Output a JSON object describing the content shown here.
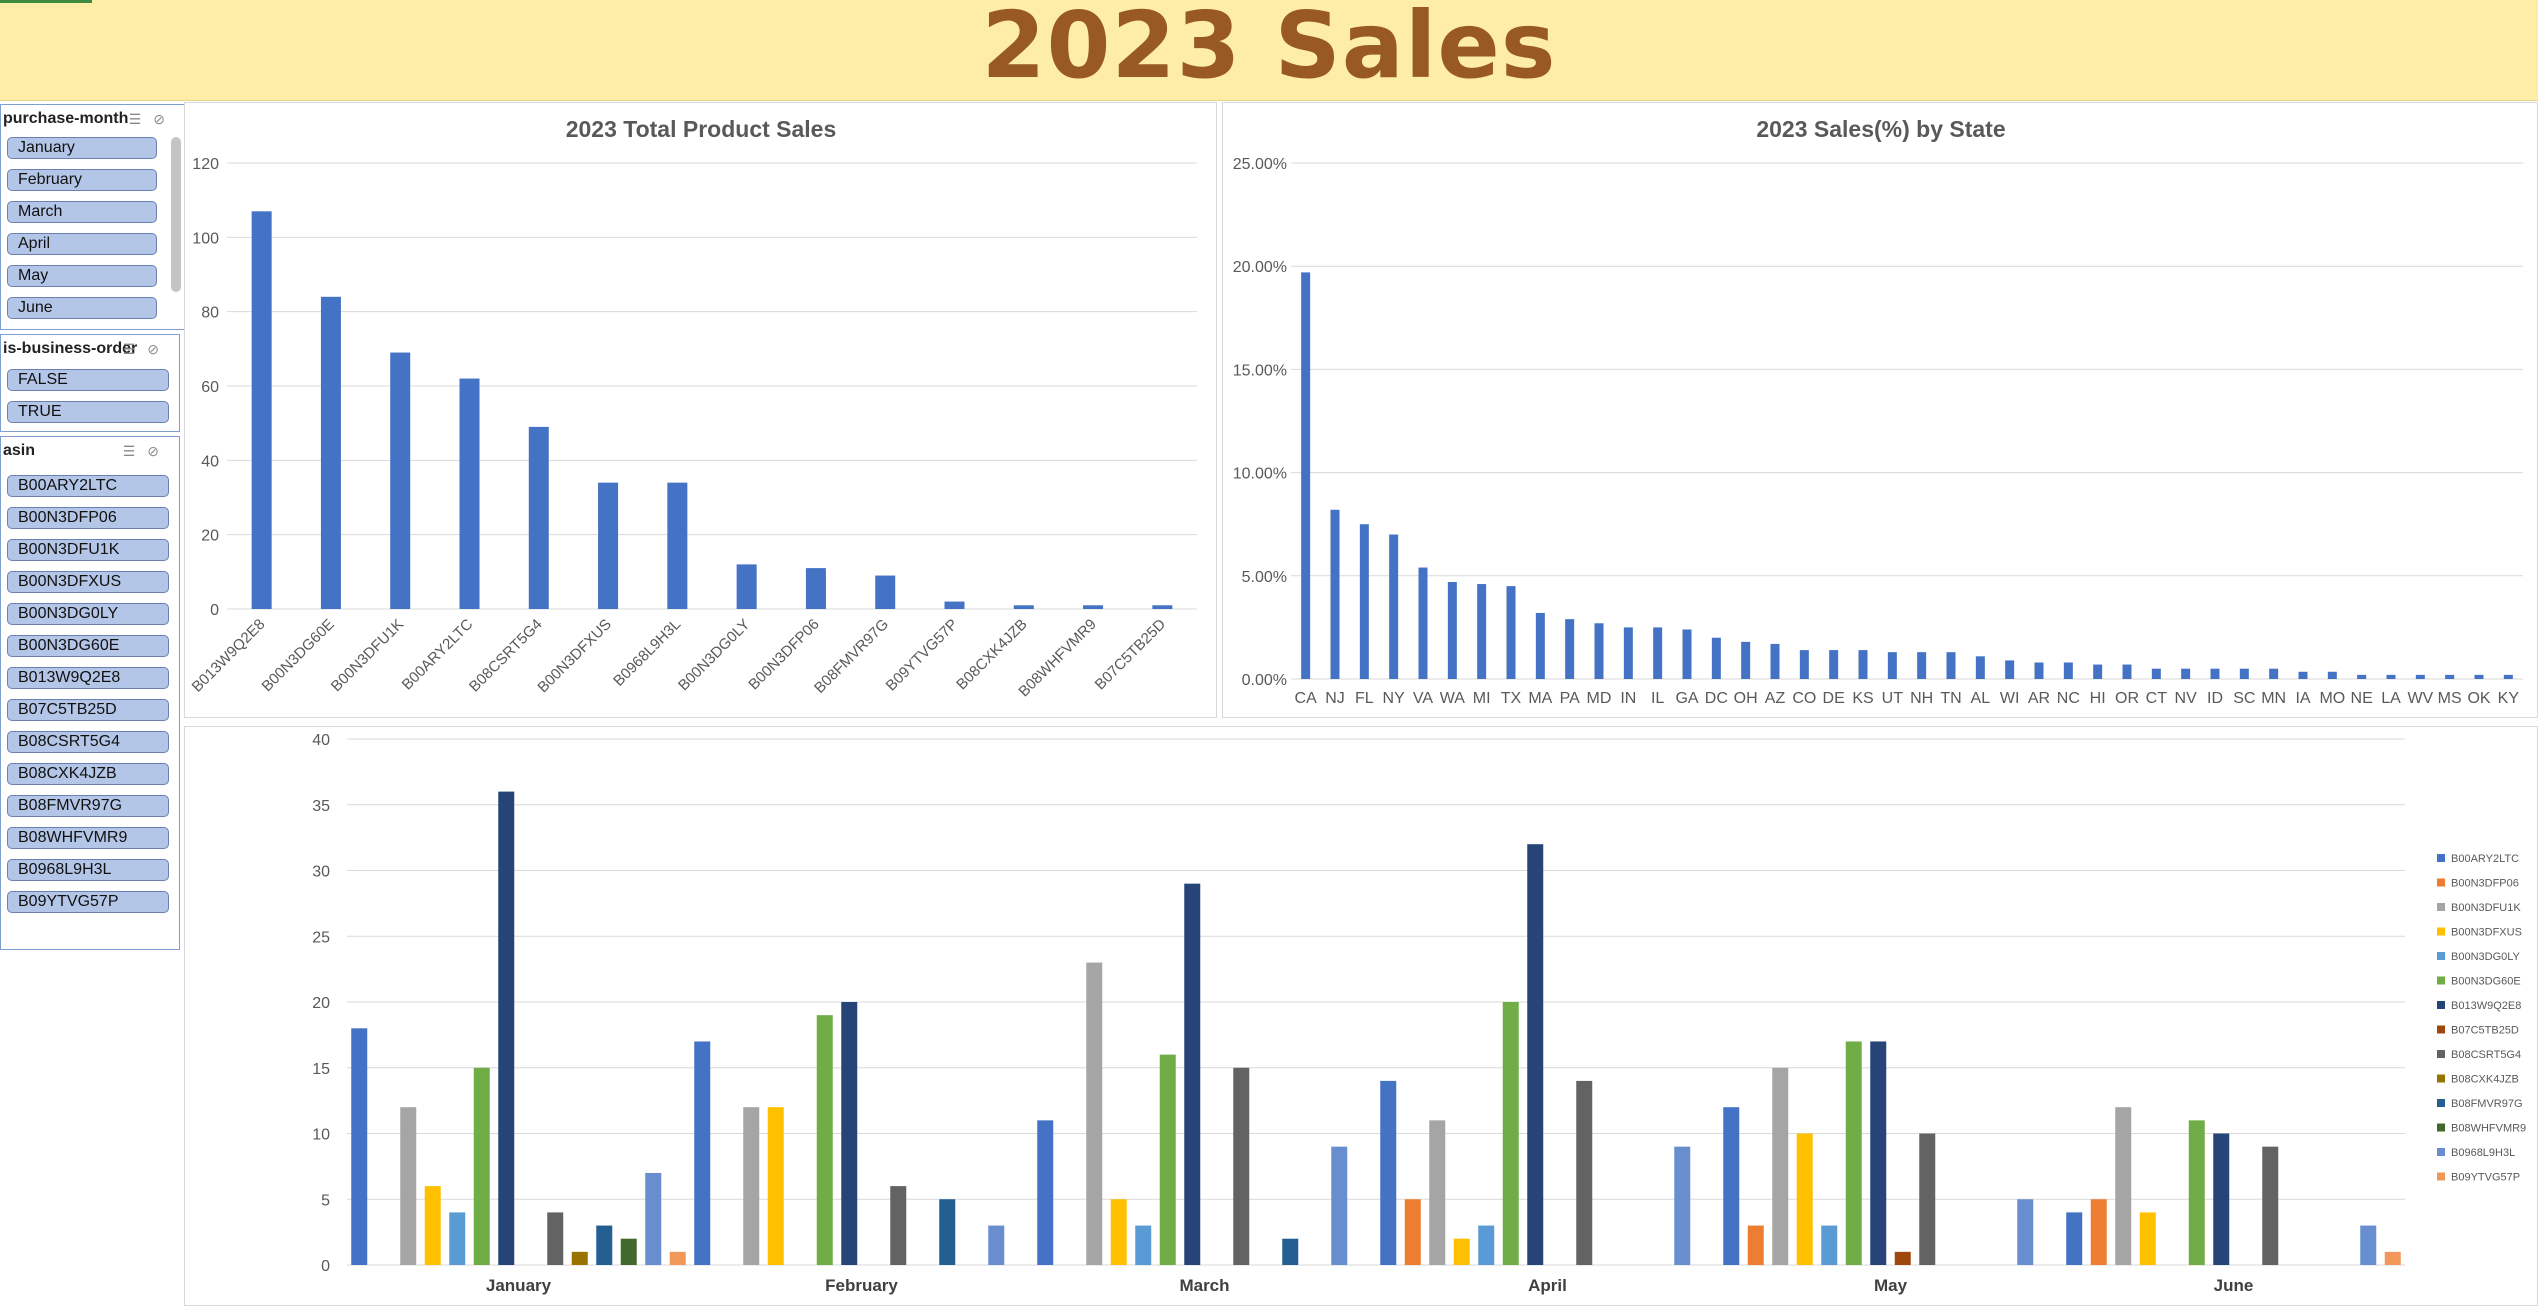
{
  "banner": {
    "title": "2023 Sales"
  },
  "slicers": {
    "month": {
      "title": "purchase-month",
      "items": [
        "January",
        "February",
        "March",
        "April",
        "May",
        "June"
      ]
    },
    "business": {
      "title": "is-business-order",
      "items": [
        "FALSE",
        "TRUE"
      ]
    },
    "asin": {
      "title": "asin",
      "items": [
        "B00ARY2LTC",
        "B00N3DFP06",
        "B00N3DFU1K",
        "B00N3DFXUS",
        "B00N3DG0LY",
        "B00N3DG60E",
        "B013W9Q2E8",
        "B07C5TB25D",
        "B08CSRT5G4",
        "B08CXK4JZB",
        "B08FMVR97G",
        "B08WHFVMR9",
        "B0968L9H3L",
        "B09YTVG57P"
      ]
    }
  },
  "colors": {
    "primary_bar": "#4472C4",
    "banner_bg": "#FDEDA6",
    "banner_text": "#985A22",
    "slicer_item": "#B4C6E7"
  },
  "chart_data": [
    {
      "type": "bar",
      "title": "2023 Total Product Sales",
      "categories": [
        "B013W9Q2E8",
        "B00N3DG60E",
        "B00N3DFU1K",
        "B00ARY2LTC",
        "B08CSRT5G4",
        "B00N3DFXUS",
        "B0968L9H3L",
        "B00N3DG0LY",
        "B00N3DFP06",
        "B08FMVR97G",
        "B09YTVG57P",
        "B08CXK4JZB",
        "B08WHFVMR9",
        "B07C5TB25D"
      ],
      "values": [
        107,
        84,
        69,
        62,
        49,
        34,
        34,
        12,
        11,
        9,
        2,
        1,
        1,
        1
      ],
      "ylim": [
        0,
        120
      ],
      "yticks": [
        "0",
        "20",
        "40",
        "60",
        "80",
        "100",
        "120"
      ],
      "grid": true
    },
    {
      "type": "bar",
      "title": "2023 Sales(%) by State",
      "categories": [
        "CA",
        "NJ",
        "FL",
        "NY",
        "VA",
        "WA",
        "MI",
        "TX",
        "MA",
        "PA",
        "MD",
        "IN",
        "IL",
        "GA",
        "DC",
        "OH",
        "AZ",
        "CO",
        "DE",
        "KS",
        "UT",
        "NH",
        "TN",
        "AL",
        "WI",
        "AR",
        "NC",
        "HI",
        "OR",
        "CT",
        "NV",
        "ID",
        "SC",
        "MN",
        "IA",
        "MO",
        "NE",
        "LA",
        "WV",
        "MS",
        "OK",
        "KY"
      ],
      "values": [
        19.7,
        8.2,
        7.5,
        7.0,
        5.4,
        4.7,
        4.6,
        4.5,
        3.2,
        2.9,
        2.7,
        2.5,
        2.5,
        2.4,
        2.0,
        1.8,
        1.7,
        1.4,
        1.4,
        1.4,
        1.3,
        1.3,
        1.3,
        1.1,
        0.9,
        0.8,
        0.8,
        0.7,
        0.7,
        0.5,
        0.5,
        0.5,
        0.5,
        0.5,
        0.35,
        0.35,
        0.2,
        0.2,
        0.2,
        0.2,
        0.2,
        0.2
      ],
      "ylim": [
        0,
        25
      ],
      "yticks": [
        "0.00%",
        "5.00%",
        "10.00%",
        "15.00%",
        "20.00%",
        "25.00%"
      ],
      "grid": true
    },
    {
      "type": "bar",
      "categories": [
        "January",
        "February",
        "March",
        "April",
        "May",
        "June"
      ],
      "ylim": [
        0,
        40
      ],
      "yticks": [
        "0",
        "5",
        "10",
        "15",
        "20",
        "25",
        "30",
        "35",
        "40"
      ],
      "legend_position": "right",
      "grid": true,
      "series": [
        {
          "name": "B00ARY2LTC",
          "color": "#4472C4",
          "values": [
            18,
            17,
            11,
            14,
            12,
            4
          ]
        },
        {
          "name": "B00N3DFP06",
          "color": "#ED7D31",
          "values": [
            0,
            0,
            0,
            5,
            3,
            5
          ]
        },
        {
          "name": "B00N3DFU1K",
          "color": "#A5A5A5",
          "values": [
            12,
            12,
            23,
            11,
            15,
            12
          ]
        },
        {
          "name": "B00N3DFXUS",
          "color": "#FFC000",
          "values": [
            6,
            12,
            5,
            2,
            10,
            4
          ]
        },
        {
          "name": "B00N3DG0LY",
          "color": "#5B9BD5",
          "values": [
            4,
            0,
            3,
            3,
            3,
            0
          ]
        },
        {
          "name": "B00N3DG60E",
          "color": "#70AD47",
          "values": [
            15,
            19,
            16,
            20,
            17,
            11
          ]
        },
        {
          "name": "B013W9Q2E8",
          "color": "#264478",
          "values": [
            36,
            20,
            29,
            32,
            17,
            10
          ]
        },
        {
          "name": "B07C5TB25D",
          "color": "#9E480E",
          "values": [
            0,
            0,
            0,
            0,
            1,
            0
          ]
        },
        {
          "name": "B08CSRT5G4",
          "color": "#636363",
          "values": [
            4,
            6,
            15,
            14,
            10,
            9
          ]
        },
        {
          "name": "B08CXK4JZB",
          "color": "#997300",
          "values": [
            1,
            0,
            0,
            0,
            0,
            0
          ]
        },
        {
          "name": "B08FMVR97G",
          "color": "#255E91",
          "values": [
            3,
            5,
            2,
            0,
            0,
            0
          ]
        },
        {
          "name": "B08WHFVMR9",
          "color": "#43682B",
          "values": [
            2,
            0,
            0,
            0,
            0,
            0
          ]
        },
        {
          "name": "B0968L9H3L",
          "color": "#698ED0",
          "values": [
            7,
            3,
            9,
            9,
            5,
            3
          ]
        },
        {
          "name": "B09YTVG57P",
          "color": "#F1975A",
          "values": [
            1,
            0,
            0,
            0,
            0,
            1
          ]
        }
      ]
    }
  ]
}
